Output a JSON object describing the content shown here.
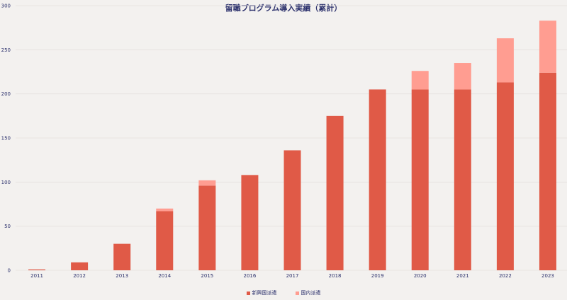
{
  "chart_data": {
    "type": "bar",
    "stacked": true,
    "title": "留職プログラム導入実績（累計）",
    "categories": [
      "2011",
      "2012",
      "2013",
      "2014",
      "2015",
      "2016",
      "2017",
      "2018",
      "2019",
      "2020",
      "2021",
      "2022",
      "2023"
    ],
    "series": [
      {
        "name": "新興国派遣",
        "color": "#e05a47",
        "values": [
          1,
          9,
          30,
          67,
          96,
          108,
          136,
          175,
          205,
          205,
          205,
          213,
          224
        ]
      },
      {
        "name": "国内派遣",
        "color": "#ff9d91",
        "values": [
          0,
          0,
          0,
          3,
          6,
          0,
          0,
          0,
          0,
          21,
          30,
          50,
          59
        ]
      }
    ],
    "yticks": [
      0,
      50,
      100,
      150,
      200,
      250,
      300
    ],
    "ylim": [
      0,
      300
    ],
    "grid": true,
    "legend_position": "bottom-center"
  }
}
